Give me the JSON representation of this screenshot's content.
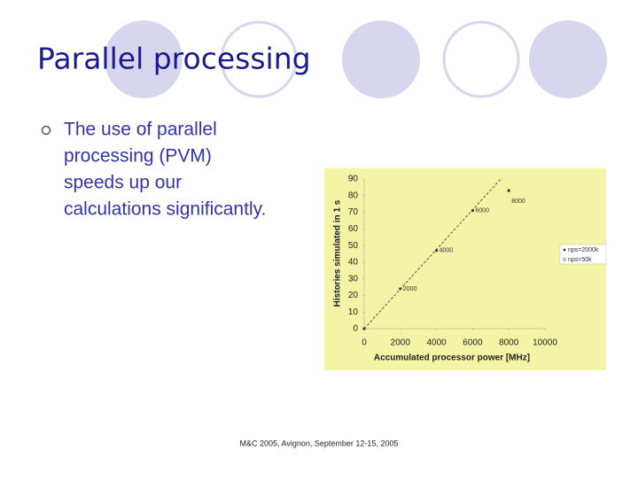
{
  "header": {
    "title": "Parallel processing"
  },
  "bullet": {
    "lines": [
      "The use of parallel",
      "processing (PVM)",
      "speeds up our",
      "calculations significantly."
    ]
  },
  "footer": "M&C 2005, Avignon, September 12-15, 2005",
  "chart_data": {
    "type": "scatter",
    "x_label": "Accumulated processor power [MHz]",
    "y_label": "Histories simulated in 1 s",
    "xlim": [
      0,
      10000
    ],
    "xticks": [
      0,
      2000,
      4000,
      6000,
      8000,
      10000
    ],
    "ylim": [
      0,
      90
    ],
    "yticks": [
      0,
      10,
      20,
      30,
      40,
      50,
      60,
      70,
      80,
      90
    ],
    "series": [
      {
        "name": "nps=2000k",
        "color": "#333333",
        "style": "points",
        "x": [
          0,
          2000,
          4000,
          6000,
          8000
        ],
        "values": [
          0,
          24,
          47,
          71,
          83
        ],
        "point_labels": [
          null,
          "2000",
          "4000",
          "6000",
          "8000"
        ]
      },
      {
        "name": "nps=50k",
        "color": "#555555",
        "style": "dashed",
        "x": [
          0,
          7550
        ],
        "values": [
          0,
          90
        ]
      }
    ]
  }
}
